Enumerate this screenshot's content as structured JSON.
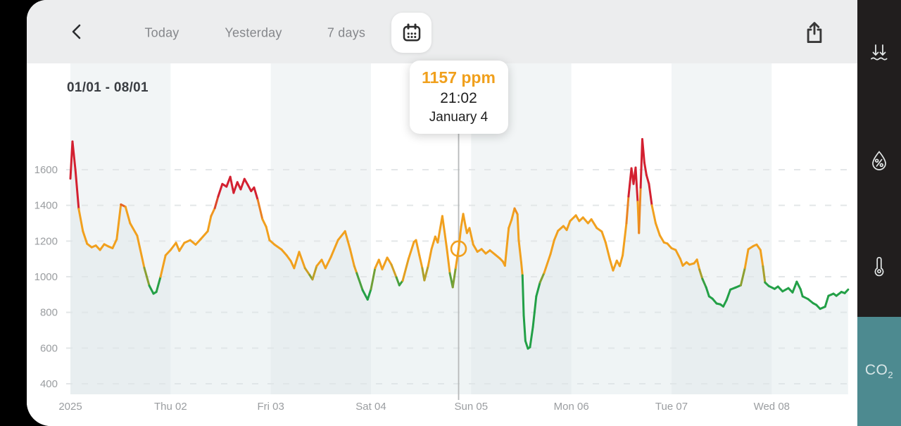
{
  "topbar": {
    "tabs": [
      {
        "label": "Today"
      },
      {
        "label": "Yesterday"
      },
      {
        "label": "7 days"
      }
    ],
    "icons": {
      "back": "chevron-left",
      "calendar": "calendar",
      "share": "share-up-arrow"
    }
  },
  "tooltip": {
    "value_text": "1157 ppm",
    "time": "21:02",
    "date": "January 4"
  },
  "sidebar": {
    "items": [
      {
        "name": "pressure",
        "icon": "pressure-arrows-over-surface",
        "active": false
      },
      {
        "name": "humidity",
        "icon": "droplet-percent",
        "active": false
      },
      {
        "name": "temperature",
        "icon": "thermometer",
        "active": false
      },
      {
        "name": "co2",
        "icon": "co2-text",
        "label": "CO₂",
        "active": true
      }
    ],
    "active_bg": "#4d8a90",
    "icon_color": "#e3e7e7"
  },
  "chart_data": {
    "type": "line",
    "title": "01/01 - 08/01",
    "unit": "ppm",
    "legend": "none",
    "grid": "horizontal-dashed",
    "x_ticks": [
      "2025",
      "Thu 02",
      "Fri 03",
      "Sat 04",
      "Sun 05",
      "Mon 06",
      "Tue 07",
      "Wed 08"
    ],
    "y_ticks": [
      1600,
      1400,
      1200,
      1000,
      800,
      600,
      400
    ],
    "ylim": [
      400,
      1800
    ],
    "xlim_days": [
      0,
      7.85
    ],
    "thresholds": {
      "good_max_ppm": 1000,
      "bad_min_ppm": 1400
    },
    "colors": {
      "good": "#23a047",
      "medium": "#f1a01e",
      "bad": "#d32030",
      "day_band": "#f2f5f6",
      "grid": "#e3e6e8",
      "area_fill": "rgba(219,230,232,0.45)",
      "marker_line": "#b7b9ba",
      "tick_text": "#9a9da0"
    },
    "marker": {
      "t_hours": 93,
      "value": 1157,
      "time": "21:02",
      "date": "January 4"
    },
    "series": [
      {
        "name": "CO₂ ppm",
        "points": [
          [
            0,
            1550
          ],
          [
            0.5,
            1758
          ],
          [
            1.2,
            1600
          ],
          [
            2,
            1380
          ],
          [
            3,
            1255
          ],
          [
            4,
            1185
          ],
          [
            5.1,
            1165
          ],
          [
            6.1,
            1175
          ],
          [
            7.1,
            1150
          ],
          [
            8.1,
            1182
          ],
          [
            9.1,
            1170
          ],
          [
            10.1,
            1160
          ],
          [
            11.1,
            1210
          ],
          [
            12.1,
            1405
          ],
          [
            13.2,
            1392
          ],
          [
            14.3,
            1300
          ],
          [
            16,
            1230
          ],
          [
            17.7,
            1050
          ],
          [
            18.9,
            950
          ],
          [
            19.9,
            905
          ],
          [
            20.6,
            915
          ],
          [
            21.6,
            1000
          ],
          [
            22.8,
            1120
          ],
          [
            24,
            1150
          ],
          [
            25.3,
            1190
          ],
          [
            26.1,
            1145
          ],
          [
            27.3,
            1190
          ],
          [
            28.7,
            1205
          ],
          [
            30,
            1180
          ],
          [
            31.2,
            1210
          ],
          [
            32.9,
            1255
          ],
          [
            33.7,
            1340
          ],
          [
            34.6,
            1385
          ],
          [
            35.4,
            1450
          ],
          [
            36.4,
            1520
          ],
          [
            37.4,
            1505
          ],
          [
            38.3,
            1560
          ],
          [
            39.1,
            1470
          ],
          [
            40,
            1530
          ],
          [
            40.8,
            1490
          ],
          [
            41.7,
            1548
          ],
          [
            42.5,
            1515
          ],
          [
            43.3,
            1480
          ],
          [
            44,
            1500
          ],
          [
            44.9,
            1430
          ],
          [
            46,
            1323
          ],
          [
            46.9,
            1280
          ],
          [
            47.7,
            1205
          ],
          [
            48.9,
            1180
          ],
          [
            50.6,
            1152
          ],
          [
            51.8,
            1120
          ],
          [
            52.8,
            1088
          ],
          [
            53.6,
            1048
          ],
          [
            54.8,
            1139
          ],
          [
            56.2,
            1048
          ],
          [
            57.3,
            1010
          ],
          [
            58,
            985
          ],
          [
            59,
            1060
          ],
          [
            60.2,
            1095
          ],
          [
            61.1,
            1048
          ],
          [
            62.4,
            1110
          ],
          [
            64.1,
            1205
          ],
          [
            65.8,
            1255
          ],
          [
            67,
            1155
          ],
          [
            68,
            1060
          ],
          [
            68.6,
            1020
          ],
          [
            70,
            925
          ],
          [
            71.2,
            872
          ],
          [
            72,
            930
          ],
          [
            73,
            1048
          ],
          [
            73.9,
            1095
          ],
          [
            74.7,
            1042
          ],
          [
            75.9,
            1107
          ],
          [
            76.9,
            1068
          ],
          [
            78.1,
            996
          ],
          [
            78.8,
            952
          ],
          [
            79.6,
            978
          ],
          [
            81,
            1100
          ],
          [
            82.3,
            1195
          ],
          [
            82.8,
            1205
          ],
          [
            83.6,
            1120
          ],
          [
            84.3,
            1048
          ],
          [
            84.8,
            980
          ],
          [
            85.7,
            1060
          ],
          [
            86.5,
            1154
          ],
          [
            87.4,
            1225
          ],
          [
            88,
            1192
          ],
          [
            89.1,
            1340
          ],
          [
            89.7,
            1240
          ],
          [
            90.2,
            1154
          ],
          [
            90.9,
            1020
          ],
          [
            91.6,
            941
          ],
          [
            92.3,
            1050
          ],
          [
            93,
            1157
          ],
          [
            93.6,
            1280
          ],
          [
            94.1,
            1352
          ],
          [
            94.6,
            1290
          ],
          [
            95,
            1245
          ],
          [
            95.6,
            1273
          ],
          [
            96.5,
            1180
          ],
          [
            97.5,
            1140
          ],
          [
            98.5,
            1155
          ],
          [
            99.5,
            1130
          ],
          [
            100.5,
            1148
          ],
          [
            101.7,
            1125
          ],
          [
            102.9,
            1102
          ],
          [
            103.6,
            1085
          ],
          [
            104.1,
            1062
          ],
          [
            105,
            1273
          ],
          [
            105.7,
            1320
          ],
          [
            106.4,
            1383
          ],
          [
            107.1,
            1350
          ],
          [
            107.4,
            1205
          ],
          [
            108,
            1080
          ],
          [
            108.3,
            1008
          ],
          [
            108.6,
            783
          ],
          [
            109,
            640
          ],
          [
            109.6,
            597
          ],
          [
            110.1,
            605
          ],
          [
            110.8,
            718
          ],
          [
            111.6,
            890
          ],
          [
            112.5,
            968
          ],
          [
            113.5,
            1022
          ],
          [
            115,
            1126
          ],
          [
            115.9,
            1205
          ],
          [
            116.8,
            1257
          ],
          [
            118.1,
            1284
          ],
          [
            118.9,
            1262
          ],
          [
            119.7,
            1312
          ],
          [
            121.1,
            1344
          ],
          [
            121.9,
            1312
          ],
          [
            122.8,
            1332
          ],
          [
            124,
            1300
          ],
          [
            124.8,
            1322
          ],
          [
            126.1,
            1273
          ],
          [
            127.3,
            1253
          ],
          [
            128.2,
            1193
          ],
          [
            129.2,
            1100
          ],
          [
            130,
            1035
          ],
          [
            130.9,
            1090
          ],
          [
            131.6,
            1060
          ],
          [
            132.3,
            1120
          ],
          [
            133.2,
            1300
          ],
          [
            133.7,
            1450
          ],
          [
            134.4,
            1608
          ],
          [
            134.9,
            1520
          ],
          [
            135.4,
            1612
          ],
          [
            135.9,
            1420
          ],
          [
            136.2,
            1245
          ],
          [
            136.6,
            1500
          ],
          [
            137,
            1771
          ],
          [
            137.5,
            1640
          ],
          [
            138,
            1570
          ],
          [
            138.6,
            1520
          ],
          [
            139.3,
            1400
          ],
          [
            140.2,
            1300
          ],
          [
            141.2,
            1232
          ],
          [
            142.2,
            1192
          ],
          [
            143,
            1186
          ],
          [
            144,
            1160
          ],
          [
            145,
            1150
          ],
          [
            146.1,
            1100
          ],
          [
            146.7,
            1062
          ],
          [
            147.6,
            1081
          ],
          [
            148.3,
            1068
          ],
          [
            149.4,
            1075
          ],
          [
            150.1,
            1096
          ],
          [
            150.7,
            1040
          ],
          [
            151.4,
            988
          ],
          [
            152.3,
            940
          ],
          [
            153,
            890
          ],
          [
            153.8,
            877
          ],
          [
            154.8,
            850
          ],
          [
            155.7,
            845
          ],
          [
            156.4,
            833
          ],
          [
            157.2,
            870
          ],
          [
            158.1,
            928
          ],
          [
            159.4,
            940
          ],
          [
            160.6,
            952
          ],
          [
            161.6,
            1050
          ],
          [
            162.4,
            1154
          ],
          [
            163.6,
            1172
          ],
          [
            164.4,
            1180
          ],
          [
            165.3,
            1150
          ],
          [
            165.9,
            1058
          ],
          [
            166.4,
            968
          ],
          [
            167.3,
            948
          ],
          [
            168.7,
            932
          ],
          [
            169.5,
            945
          ],
          [
            170.6,
            918
          ],
          [
            172,
            936
          ],
          [
            173,
            912
          ],
          [
            174,
            972
          ],
          [
            174.9,
            930
          ],
          [
            175.4,
            890
          ],
          [
            176.7,
            875
          ],
          [
            177.9,
            852
          ],
          [
            178.7,
            842
          ],
          [
            179.6,
            820
          ],
          [
            180.8,
            832
          ],
          [
            181.6,
            893
          ],
          [
            182.8,
            905
          ],
          [
            183.5,
            893
          ],
          [
            184.7,
            915
          ],
          [
            185.5,
            908
          ],
          [
            186.3,
            928
          ]
        ]
      }
    ]
  }
}
